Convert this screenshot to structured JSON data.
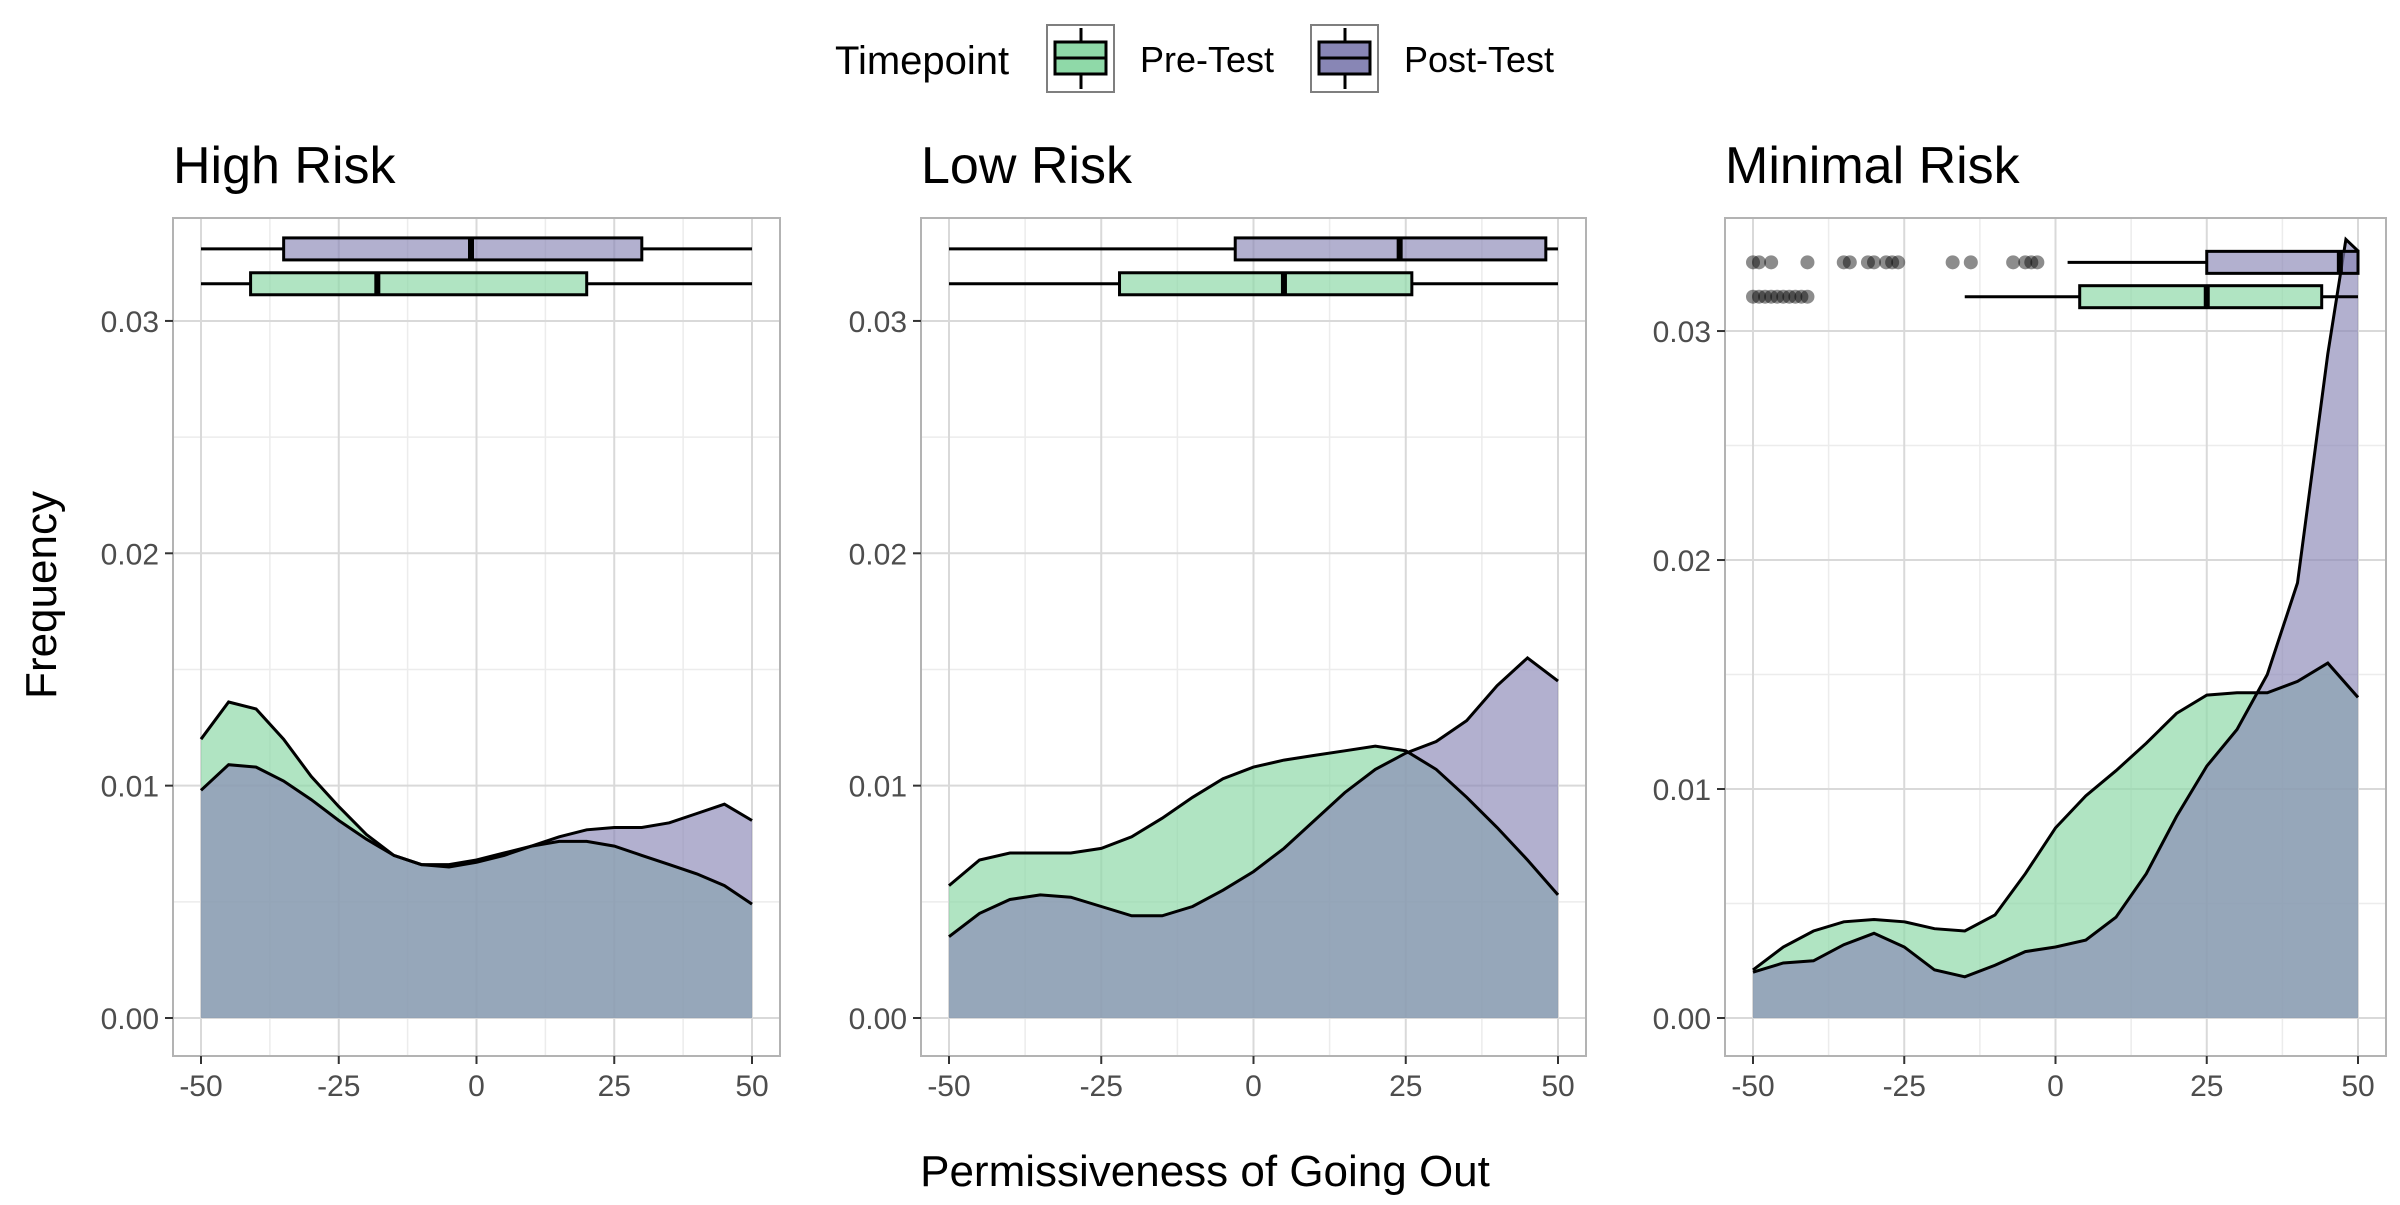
{
  "legend": {
    "title": "Timepoint",
    "items": [
      {
        "label": "Pre-Test",
        "color": "#8fd9a8"
      },
      {
        "label": "Post-Test",
        "color": "#8886b5"
      }
    ]
  },
  "colors": {
    "pre_fill": "#8fd9a8",
    "post_fill": "#8886b5",
    "overlap_fill": "#85b9a7",
    "outline": "#000000",
    "grid_major": "#d9d9d9",
    "grid_minor": "#ececec",
    "panel_border": "#b3b3b3"
  },
  "axes": {
    "xlabel": "Permissiveness of Going Out",
    "ylabel": "Frequency"
  },
  "chart_data": [
    {
      "type": "area",
      "title": "High Risk",
      "xlim": [
        -50,
        50
      ],
      "ylim": [
        0,
        0.034
      ],
      "x_ticks": [
        "-50",
        "-25",
        "0",
        "25",
        "50"
      ],
      "y_ticks": [
        "0.00",
        "0.01",
        "0.02",
        "0.03"
      ],
      "series": [
        {
          "name": "Pre-Test",
          "x": [
            -50,
            -45,
            -40,
            -35,
            -30,
            -25,
            -20,
            -15,
            -10,
            -5,
            0,
            5,
            10,
            15,
            20,
            25,
            30,
            35,
            40,
            45,
            50
          ],
          "y": [
            0.012,
            0.0136,
            0.0133,
            0.012,
            0.0104,
            0.0091,
            0.0079,
            0.007,
            0.0066,
            0.0066,
            0.0068,
            0.0071,
            0.0074,
            0.0076,
            0.0076,
            0.0074,
            0.007,
            0.0066,
            0.0062,
            0.0057,
            0.0049
          ]
        },
        {
          "name": "Post-Test",
          "x": [
            -50,
            -45,
            -40,
            -35,
            -30,
            -25,
            -20,
            -15,
            -10,
            -5,
            0,
            5,
            10,
            15,
            20,
            25,
            30,
            35,
            40,
            45,
            50
          ],
          "y": [
            0.0098,
            0.0109,
            0.0108,
            0.0102,
            0.0094,
            0.0085,
            0.0077,
            0.007,
            0.0066,
            0.0065,
            0.0067,
            0.007,
            0.0074,
            0.0078,
            0.0081,
            0.0082,
            0.0082,
            0.0084,
            0.0088,
            0.0092,
            0.0085
          ]
        }
      ],
      "boxplots": [
        {
          "name": "Post-Test",
          "whisker_low": -50,
          "q1": -35,
          "median": -1,
          "q3": 30,
          "whisker_high": 50,
          "y": 0.0331,
          "outliers": []
        },
        {
          "name": "Pre-Test",
          "whisker_low": -50,
          "q1": -41,
          "median": -18,
          "q3": 20,
          "whisker_high": 50,
          "y": 0.0316,
          "outliers": []
        }
      ]
    },
    {
      "type": "area",
      "title": "Low Risk",
      "xlim": [
        -50,
        50
      ],
      "ylim": [
        0,
        0.034
      ],
      "x_ticks": [
        "-50",
        "-25",
        "0",
        "25",
        "50"
      ],
      "y_ticks": [
        "0.00",
        "0.01",
        "0.02",
        "0.03"
      ],
      "series": [
        {
          "name": "Pre-Test",
          "x": [
            -50,
            -45,
            -40,
            -35,
            -30,
            -25,
            -20,
            -15,
            -10,
            -5,
            0,
            5,
            10,
            15,
            20,
            25,
            30,
            35,
            40,
            45,
            50
          ],
          "y": [
            0.0057,
            0.0068,
            0.0071,
            0.0071,
            0.0071,
            0.0073,
            0.0078,
            0.0086,
            0.0095,
            0.0103,
            0.0108,
            0.0111,
            0.0113,
            0.0115,
            0.0117,
            0.0115,
            0.0107,
            0.0095,
            0.0082,
            0.0068,
            0.0053
          ]
        },
        {
          "name": "Post-Test",
          "x": [
            -50,
            -45,
            -40,
            -35,
            -30,
            -25,
            -20,
            -15,
            -10,
            -5,
            0,
            5,
            10,
            15,
            20,
            25,
            30,
            35,
            40,
            45,
            50
          ],
          "y": [
            0.0035,
            0.0045,
            0.0051,
            0.0053,
            0.0052,
            0.0048,
            0.0044,
            0.0044,
            0.0048,
            0.0055,
            0.0063,
            0.0073,
            0.0085,
            0.0097,
            0.0107,
            0.0114,
            0.0119,
            0.0128,
            0.0143,
            0.0155,
            0.0145
          ]
        }
      ],
      "boxplots": [
        {
          "name": "Post-Test",
          "whisker_low": -50,
          "q1": -3,
          "median": 24,
          "q3": 48,
          "whisker_high": 50,
          "y": 0.0331,
          "outliers": []
        },
        {
          "name": "Pre-Test",
          "whisker_low": -50,
          "q1": -22,
          "median": 5,
          "q3": 26,
          "whisker_high": 50,
          "y": 0.0316,
          "outliers": []
        }
      ]
    },
    {
      "type": "area",
      "title": "Minimal Risk",
      "xlim": [
        -50,
        50
      ],
      "ylim": [
        0,
        0.0345
      ],
      "x_ticks": [
        "-50",
        "-25",
        "0",
        "25",
        "50"
      ],
      "y_ticks": [
        "0.00",
        "0.01",
        "0.02",
        "0.03"
      ],
      "series": [
        {
          "name": "Pre-Test",
          "x": [
            -50,
            -45,
            -40,
            -35,
            -30,
            -25,
            -20,
            -15,
            -10,
            -5,
            0,
            5,
            10,
            15,
            20,
            25,
            30,
            35,
            40,
            45,
            50
          ],
          "y": [
            0.0021,
            0.0031,
            0.0038,
            0.0042,
            0.0043,
            0.0042,
            0.0039,
            0.0038,
            0.0045,
            0.0063,
            0.0083,
            0.0097,
            0.0108,
            0.012,
            0.0133,
            0.0141,
            0.0142,
            0.0142,
            0.0147,
            0.0155,
            0.014
          ]
        },
        {
          "name": "Post-Test",
          "x": [
            -50,
            -45,
            -40,
            -35,
            -30,
            -25,
            -20,
            -15,
            -10,
            -5,
            0,
            5,
            10,
            15,
            20,
            25,
            30,
            35,
            40,
            45,
            48,
            50
          ],
          "y": [
            0.002,
            0.0024,
            0.0025,
            0.0032,
            0.0037,
            0.0031,
            0.0021,
            0.0018,
            0.0023,
            0.0029,
            0.0031,
            0.0034,
            0.0044,
            0.0063,
            0.0088,
            0.011,
            0.0126,
            0.015,
            0.019,
            0.029,
            0.034,
            0.0335
          ]
        }
      ],
      "boxplots": [
        {
          "name": "Post-Test",
          "whisker_low": 2,
          "q1": 25,
          "median": 47,
          "q3": 50,
          "whisker_high": 50,
          "y": 0.033,
          "outliers": [
            -50,
            -49,
            -47,
            -41,
            -35,
            -34,
            -31,
            -30,
            -28,
            -27,
            -26,
            -17,
            -14,
            -7,
            -5,
            -4,
            -3
          ]
        },
        {
          "name": "Pre-Test",
          "whisker_low": -15,
          "q1": 4,
          "median": 25,
          "q3": 44,
          "whisker_high": 50,
          "y": 0.0315,
          "outliers": [
            -50,
            -49,
            -48,
            -47,
            -46,
            -45,
            -44,
            -43,
            -42,
            -41
          ]
        }
      ]
    }
  ]
}
